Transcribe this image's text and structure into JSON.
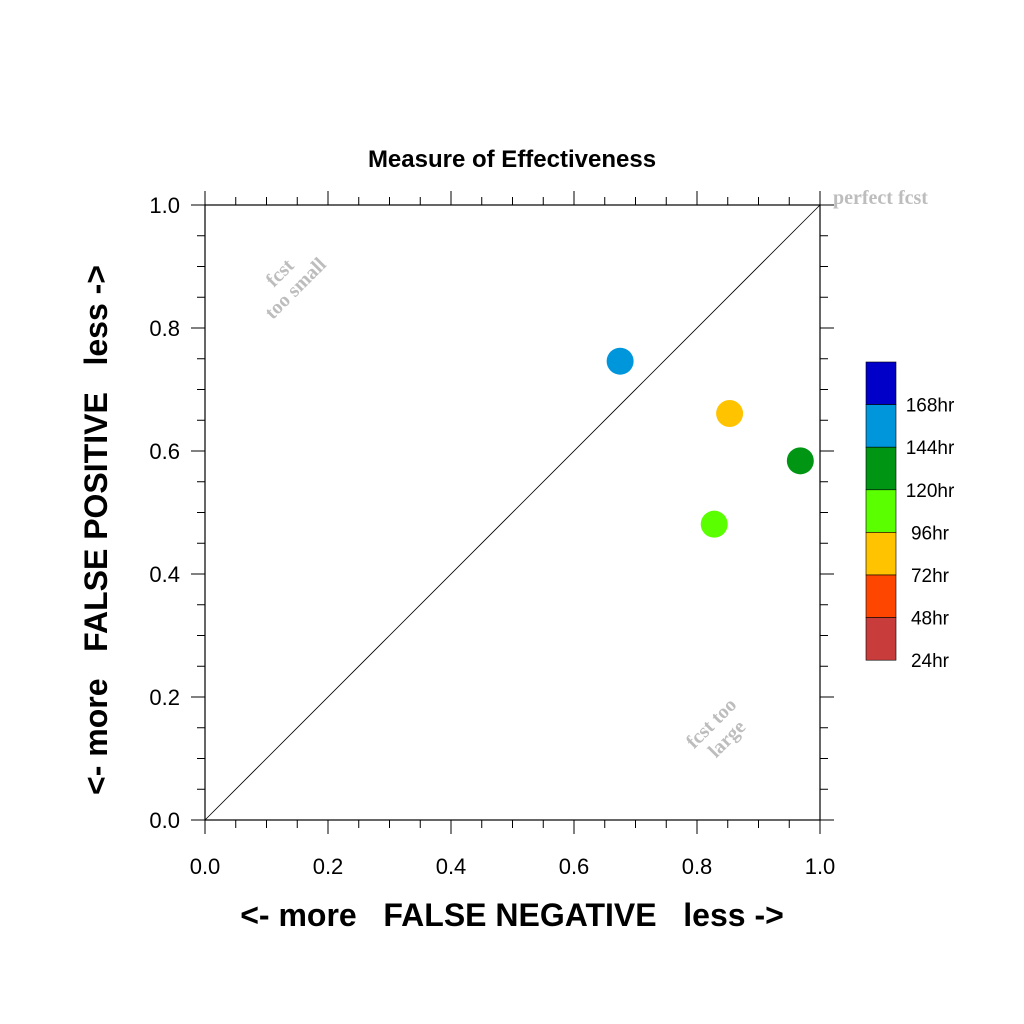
{
  "chart_data": {
    "type": "scatter",
    "title": "Measure of Effectiveness",
    "xlabel": "<- more   FALSE NEGATIVE   less ->",
    "ylabel": "<- more   FALSE POSITIVE   less ->",
    "xlim": [
      0,
      1
    ],
    "ylim": [
      0,
      1
    ],
    "x_ticks": [
      "0.0",
      "0.2",
      "0.4",
      "0.6",
      "0.8",
      "1.0"
    ],
    "y_ticks": [
      "0.0",
      "0.2",
      "0.4",
      "0.6",
      "0.8",
      "1.0"
    ],
    "reference_line": {
      "from": [
        0,
        0
      ],
      "to": [
        1,
        1
      ]
    },
    "annotations": {
      "perfect": "perfect fcst",
      "too_small_1": "fcst",
      "too_small_2": "too small",
      "too_large_1": "fcst too",
      "too_large_2": "large"
    },
    "legend": [
      {
        "label": "168hr",
        "color": "#0000c8"
      },
      {
        "label": "144hr",
        "color": "#0096dc"
      },
      {
        "label": "120hr",
        "color": "#009614"
      },
      {
        "label": "96hr",
        "color": "#5aff00"
      },
      {
        "label": "72hr",
        "color": "#ffc300"
      },
      {
        "label": "48hr",
        "color": "#ff4600"
      },
      {
        "label": "24hr",
        "color": "#c83c3c"
      }
    ],
    "points": [
      {
        "series": "144hr",
        "x": 0.675,
        "y": 0.746
      },
      {
        "series": "72hr",
        "x": 0.853,
        "y": 0.661
      },
      {
        "series": "120hr",
        "x": 0.968,
        "y": 0.584
      },
      {
        "series": "96hr",
        "x": 0.828,
        "y": 0.481
      }
    ]
  }
}
